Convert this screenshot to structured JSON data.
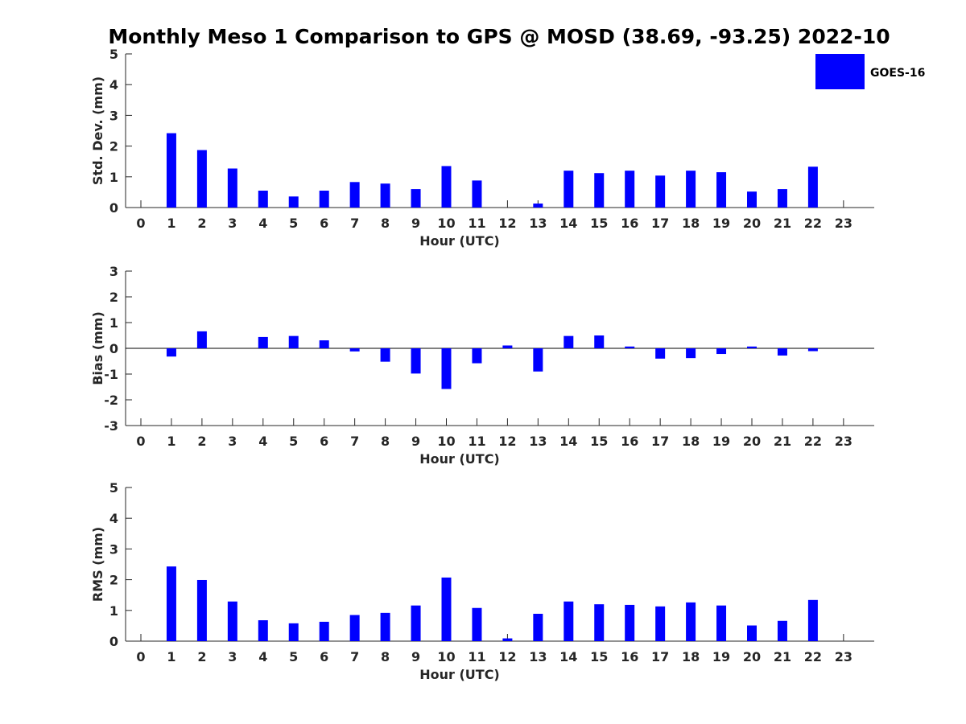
{
  "title": "Monthly Meso 1 Comparison to GPS @ MOSD (38.69, -93.25) 2022-10",
  "bar_color": "#0000ff",
  "legend": {
    "label": "GOES-16",
    "placement": "top-right"
  },
  "chart_data": [
    {
      "type": "bar",
      "name": "std-dev",
      "title": "Monthly Meso 1 Comparison to GPS @ MOSD (38.69, -93.25) 2022-10",
      "xlabel": "Hour (UTC)",
      "ylabel": "Std. Dev. (mm)",
      "ylim": [
        0,
        5
      ],
      "yticks": [
        0,
        1,
        2,
        3,
        4,
        5
      ],
      "categories": [
        "0",
        "1",
        "2",
        "3",
        "4",
        "5",
        "6",
        "7",
        "8",
        "9",
        "10",
        "11",
        "12",
        "13",
        "14",
        "15",
        "16",
        "17",
        "18",
        "19",
        "20",
        "21",
        "22",
        "23"
      ],
      "series": [
        {
          "name": "GOES-16",
          "values": [
            null,
            2.42,
            1.87,
            1.27,
            0.55,
            0.36,
            0.55,
            0.83,
            0.78,
            0.6,
            1.35,
            0.88,
            null,
            0.13,
            1.2,
            1.12,
            1.2,
            1.04,
            1.2,
            1.15,
            0.52,
            0.6,
            1.33,
            null
          ]
        }
      ],
      "grid": false
    },
    {
      "type": "bar",
      "name": "bias",
      "xlabel": "Hour (UTC)",
      "ylabel": "Bias (mm)",
      "ylim": [
        -3,
        3
      ],
      "yticks": [
        -3,
        -2,
        -1,
        0,
        1,
        2,
        3
      ],
      "categories": [
        "0",
        "1",
        "2",
        "3",
        "4",
        "5",
        "6",
        "7",
        "8",
        "9",
        "10",
        "11",
        "12",
        "13",
        "14",
        "15",
        "16",
        "17",
        "18",
        "19",
        "20",
        "21",
        "22",
        "23"
      ],
      "series": [
        {
          "name": "GOES-16",
          "values": [
            null,
            -0.32,
            0.66,
            null,
            0.44,
            0.48,
            0.31,
            -0.12,
            -0.52,
            -0.98,
            -1.58,
            -0.58,
            0.11,
            -0.9,
            0.48,
            0.5,
            0.07,
            -0.4,
            -0.38,
            -0.22,
            0.07,
            -0.28,
            -0.11,
            null
          ]
        }
      ],
      "grid": false
    },
    {
      "type": "bar",
      "name": "rms",
      "xlabel": "Hour (UTC)",
      "ylabel": "RMS (mm)",
      "ylim": [
        0,
        5
      ],
      "yticks": [
        0,
        1,
        2,
        3,
        4,
        5
      ],
      "categories": [
        "0",
        "1",
        "2",
        "3",
        "4",
        "5",
        "6",
        "7",
        "8",
        "9",
        "10",
        "11",
        "12",
        "13",
        "14",
        "15",
        "16",
        "17",
        "18",
        "19",
        "20",
        "21",
        "22",
        "23"
      ],
      "series": [
        {
          "name": "GOES-16",
          "values": [
            null,
            2.43,
            1.99,
            1.29,
            0.68,
            0.58,
            0.63,
            0.85,
            0.92,
            1.16,
            2.07,
            1.08,
            0.09,
            0.89,
            1.29,
            1.2,
            1.18,
            1.13,
            1.26,
            1.16,
            0.51,
            0.66,
            1.34,
            null
          ]
        }
      ],
      "grid": false
    }
  ]
}
